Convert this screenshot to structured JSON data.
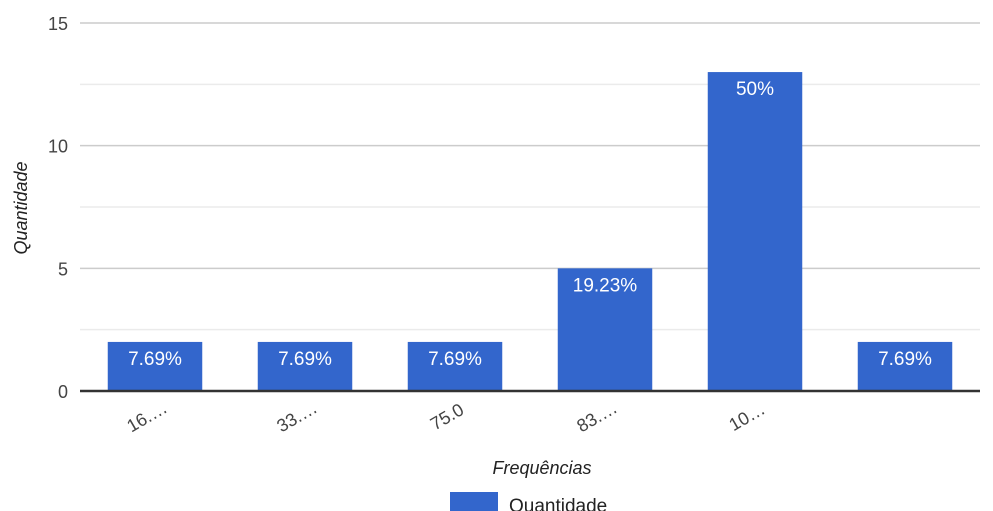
{
  "chart_data": {
    "type": "bar",
    "categories": [
      "16.…",
      "33.…",
      "75.0",
      "83.…",
      "10…",
      ""
    ],
    "series": [
      {
        "name": "Quantidade",
        "values": [
          2,
          2,
          2,
          5,
          13,
          2
        ],
        "data_labels": [
          "7.69%",
          "7.69%",
          "7.69%",
          "19.23%",
          "50%",
          "7.69%"
        ],
        "color": "#3366cc"
      }
    ],
    "xlabel": "Frequências",
    "ylabel": "Quantidade",
    "ylim": [
      0,
      15
    ],
    "yticks": [
      "0",
      "5",
      "10",
      "15"
    ],
    "ytick_values": [
      0,
      5,
      10,
      15
    ],
    "minor_gridlines": [
      2.5,
      7.5,
      12.5
    ],
    "grid": true,
    "legend_position": "bottom",
    "colors": {
      "bar": "#3366cc",
      "gridline": "#cccccc",
      "minor_gridline": "#ebebeb",
      "baseline": "#333333"
    }
  }
}
